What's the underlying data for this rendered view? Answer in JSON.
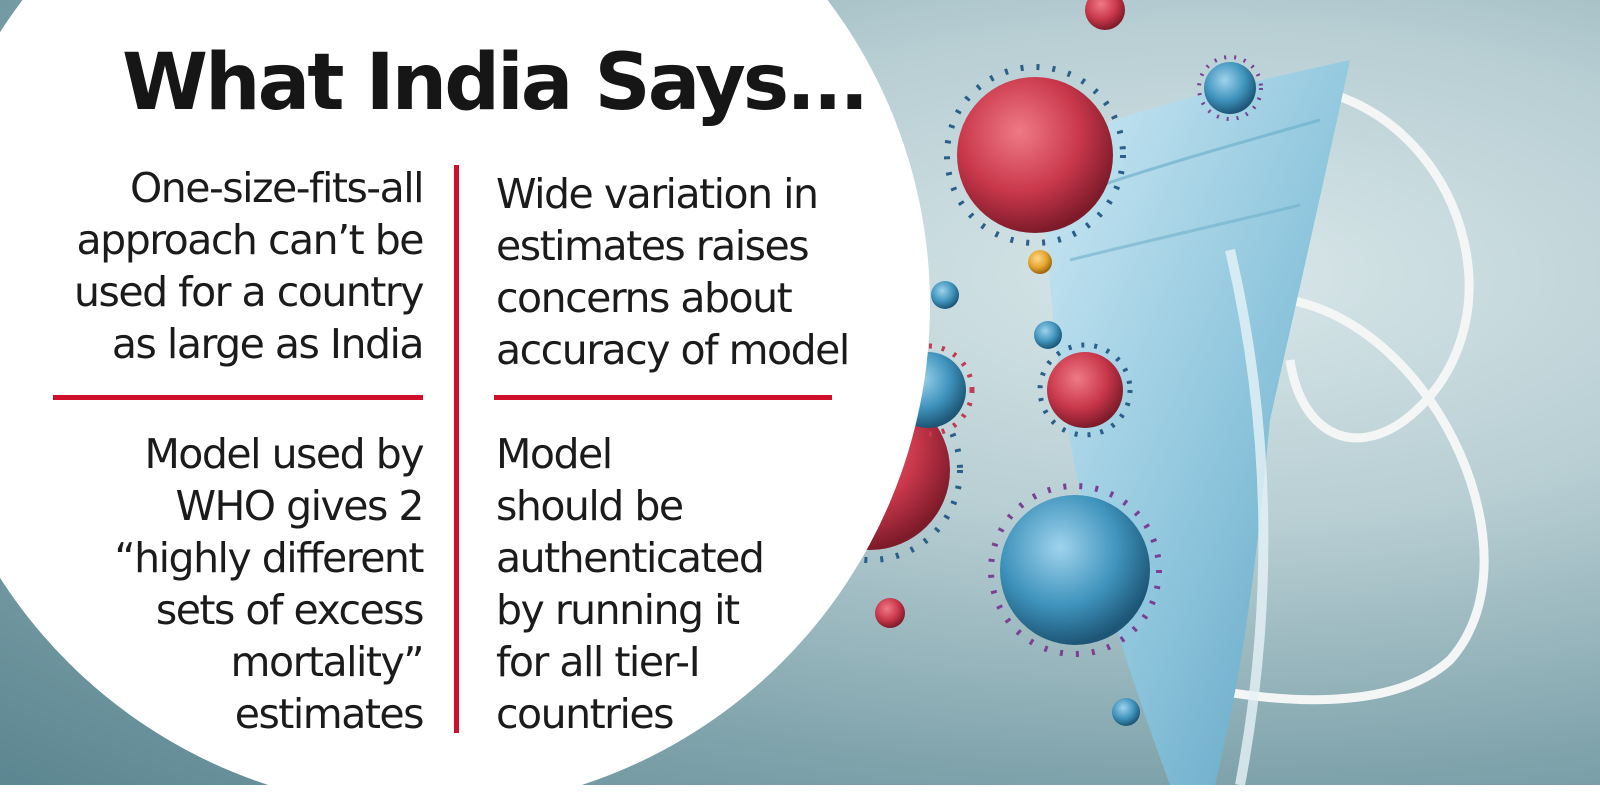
{
  "title": "What India Says...",
  "accent_color": "#d0102b",
  "panels": {
    "top_left": [
      "One-size-fits-all",
      "approach can’t be",
      "used for a country",
      "as large as India"
    ],
    "top_right": [
      "Wide variation in",
      "estimates raises",
      "concerns about",
      "accuracy of model"
    ],
    "bottom_left": [
      "Model used by",
      "WHO gives 2",
      "“highly different",
      "sets of excess",
      "mortality”",
      "estimates"
    ],
    "bottom_right": [
      "Model",
      "should be",
      "authenticated",
      "by running it",
      "for all tier-I",
      "countries"
    ]
  },
  "illustration": {
    "subject": "face-mask-with-coronavirus-particles",
    "virus_colors": [
      "#c9374b",
      "#3f93bd",
      "#e4a52d"
    ],
    "mask_color": "#8fc6dd"
  }
}
